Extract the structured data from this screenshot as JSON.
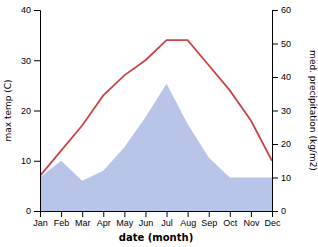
{
  "chart_data": {
    "type": "line",
    "categories": [
      "Jan",
      "Feb",
      "Mar",
      "Apr",
      "May",
      "Jun",
      "Jul",
      "Aug",
      "Sep",
      "Oct",
      "Nov",
      "Dec"
    ],
    "xlabel": "date (month)",
    "ylabel": "max temp (C)",
    "y2label": "med. precipitation (kg/m2)",
    "ylim": [
      0,
      40
    ],
    "yticks": [
      0,
      10,
      20,
      30,
      40
    ],
    "y2lim": [
      0,
      60
    ],
    "y2ticks": [
      0,
      10,
      20,
      30,
      40,
      50,
      60
    ],
    "grid": false,
    "series": [
      {
        "type": "area",
        "axis": "y2",
        "color": "#b8c4e8",
        "values": [
          10,
          15,
          9,
          12,
          19,
          28,
          38,
          26,
          16,
          10,
          10,
          10
        ]
      },
      {
        "type": "line",
        "color": "#cc4444",
        "values": [
          7,
          12,
          17,
          23,
          27,
          30,
          34,
          34,
          29,
          24,
          18,
          10
        ]
      }
    ]
  }
}
